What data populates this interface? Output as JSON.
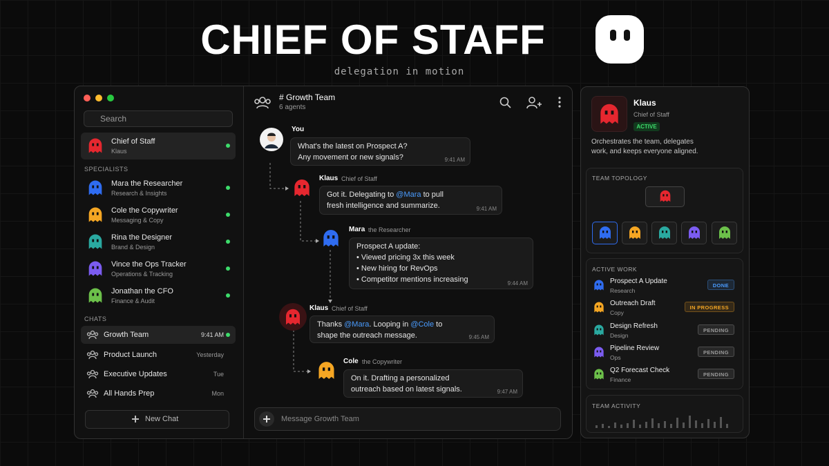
{
  "header": {
    "title": "CHIEF OF STAFF",
    "subtitle": "delegation in motion"
  },
  "sidebar": {
    "search": "Search",
    "pinned": {
      "name": "Chief of Staff",
      "subtitle": "Klaus",
      "color": "#e5272f"
    },
    "specialists_label": "SPECIALISTS",
    "specialists": [
      {
        "name": "Mara the Researcher",
        "role": "Research & Insights",
        "color": "#2f6cf0"
      },
      {
        "name": "Cole the Copywriter",
        "role": "Messaging & Copy",
        "color": "#f5a623"
      },
      {
        "name": "Rina the Designer",
        "role": "Brand & Design",
        "color": "#2aa9a0"
      },
      {
        "name": "Vince the Ops Tracker",
        "role": "Operations & Tracking",
        "color": "#7b5cf0"
      },
      {
        "name": "Jonathan the CFO",
        "role": "Finance & Audit",
        "color": "#6cc04a"
      }
    ],
    "chats_label": "CHATS",
    "chats": [
      {
        "name": "Growth Team",
        "time": "9:41 AM"
      },
      {
        "name": "Product Launch",
        "time": "Yesterday"
      },
      {
        "name": "Executive Updates",
        "time": "Tue"
      },
      {
        "name": "All Hands Prep",
        "time": "Mon"
      }
    ],
    "new_chat": "New Chat"
  },
  "chat": {
    "title": "# Growth Team",
    "subtitle": "6 agents",
    "messages": [
      {
        "sender": "You",
        "lines": [
          [
            "What's the latest on Prospect A?"
          ],
          [
            "Any movement or new signals?"
          ]
        ],
        "time": "9:41 AM"
      },
      {
        "sender": "Klaus",
        "role": "Chief of Staff",
        "color": "#e5272f",
        "lines": [
          [
            "Got it. Delegating to ",
            "@Mara",
            " to pull"
          ],
          [
            "fresh intelligence and summarize."
          ]
        ],
        "time": "9:41 AM"
      },
      {
        "sender": "Mara",
        "role": "the Researcher",
        "color": "#2f6cf0",
        "lines": [
          [
            "Prospect A update:"
          ],
          [
            "• Viewed pricing 3x this week"
          ],
          [
            "• New hiring for RevOps"
          ],
          [
            "• Competitor mentions increasing"
          ]
        ],
        "time": "9:44 AM"
      },
      {
        "sender": "Klaus",
        "role": "Chief of Staff",
        "color": "#e5272f",
        "lines": [
          [
            "Thanks ",
            "@Mara",
            ". Looping in ",
            "@Cole",
            " to"
          ],
          [
            "shape the outreach message."
          ]
        ],
        "time": "9:45 AM"
      },
      {
        "sender": "Cole",
        "role": "the Copywriter",
        "color": "#f5a623",
        "lines": [
          [
            "On it. Drafting a personalized"
          ],
          [
            "outreach based on latest signals."
          ]
        ],
        "time": "9:47 AM"
      }
    ],
    "input_placeholder": "Message Growth Team"
  },
  "profile": {
    "name": "Klaus",
    "role": "Chief of Staff",
    "status": "ACTIVE",
    "color": "#e5272f",
    "description": [
      "Orchestrates the team, delegates",
      "work, and keeps everyone aligned."
    ]
  },
  "topology": {
    "label": "TEAM TOPOLOGY"
  },
  "active_work": {
    "label": "ACTIVE WORK",
    "items": [
      {
        "title": "Prospect A Update",
        "team": "Research",
        "status": "DONE",
        "color": "#2f6cf0",
        "badge_color": "#4a9cff"
      },
      {
        "title": "Outreach Draft",
        "team": "Copy",
        "status": "IN PROGRESS",
        "color": "#f5a623",
        "badge_color": "#f5a623"
      },
      {
        "title": "Design Refresh",
        "team": "Design",
        "status": "PENDING",
        "color": "#2aa9a0",
        "badge_color": "#9a9a9a"
      },
      {
        "title": "Pipeline Review",
        "team": "Ops",
        "status": "PENDING",
        "color": "#7b5cf0",
        "badge_color": "#9a9a9a"
      },
      {
        "title": "Q2 Forecast Check",
        "team": "Finance",
        "status": "PENDING",
        "color": "#6cc04a",
        "badge_color": "#9a9a9a"
      }
    ]
  },
  "team_activity": {
    "label": "TEAM ACTIVITY",
    "values": [
      4,
      6,
      3,
      8,
      5,
      7,
      12,
      5,
      9,
      14,
      7,
      10,
      6,
      15,
      8,
      18,
      11,
      7,
      13,
      9,
      16,
      6
    ]
  }
}
